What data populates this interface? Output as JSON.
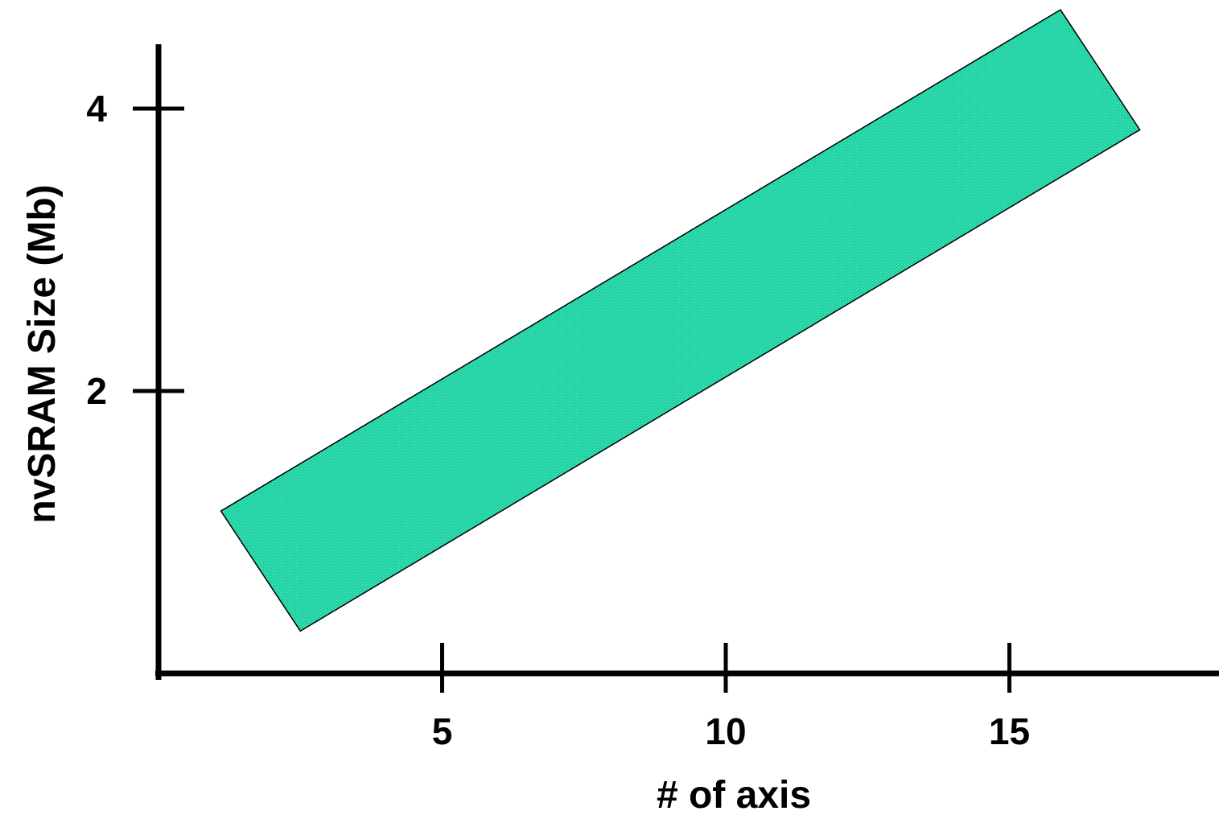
{
  "chart_data": {
    "type": "area",
    "title": "",
    "xlabel": "# of axis",
    "ylabel": "nvSRAM Size (Mb)",
    "xlim": [
      0,
      18.7
    ],
    "ylim": [
      0,
      4.45
    ],
    "x_ticks": [
      5,
      10,
      15
    ],
    "y_ticks": [
      2,
      4
    ],
    "grid": false,
    "legend": "none",
    "band": {
      "fill_color": "#22d3a5",
      "edge_color": "#000000",
      "vertices": [
        {
          "x": 1.1,
          "y": 1.15
        },
        {
          "x": 15.9,
          "y": 4.7
        },
        {
          "x": 17.3,
          "y": 3.85
        },
        {
          "x": 2.5,
          "y": 0.3
        }
      ]
    }
  }
}
